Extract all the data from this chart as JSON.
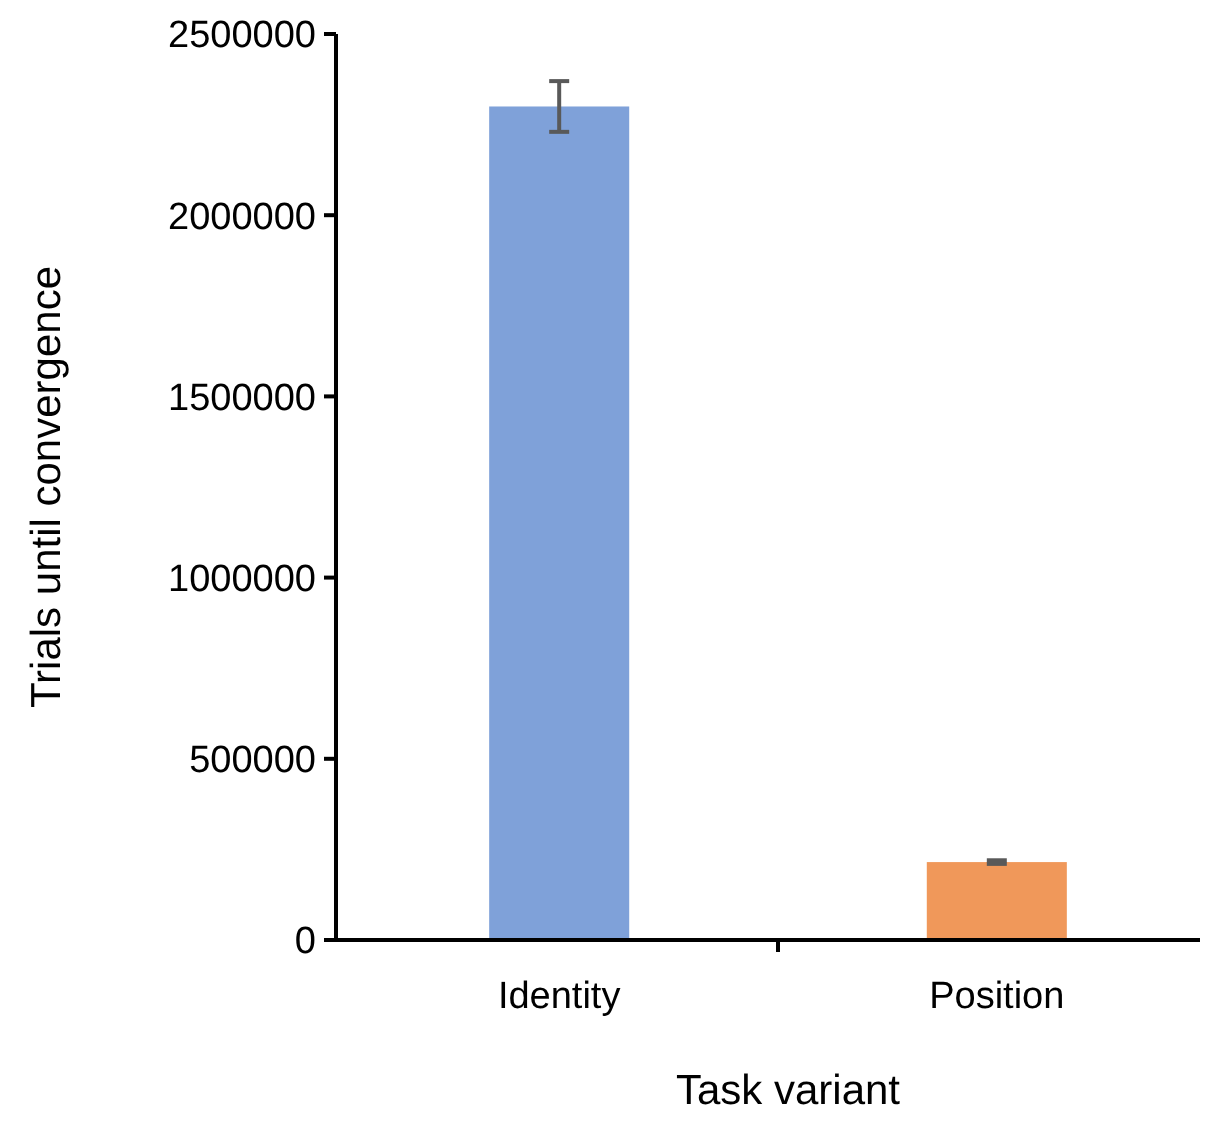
{
  "chart_data": {
    "type": "bar",
    "xlabel": "Task variant",
    "ylabel": "Trials until convergence",
    "categories": [
      "Identity",
      "Position"
    ],
    "values": [
      2300000,
      215000
    ],
    "colors": [
      "#7fa1d9",
      "#f0985a"
    ],
    "errors": [
      70000,
      5000
    ],
    "ylim": [
      0,
      2500000
    ],
    "yticks": [
      0,
      500000,
      1000000,
      1500000,
      2000000,
      2500000
    ],
    "grid": false
  }
}
